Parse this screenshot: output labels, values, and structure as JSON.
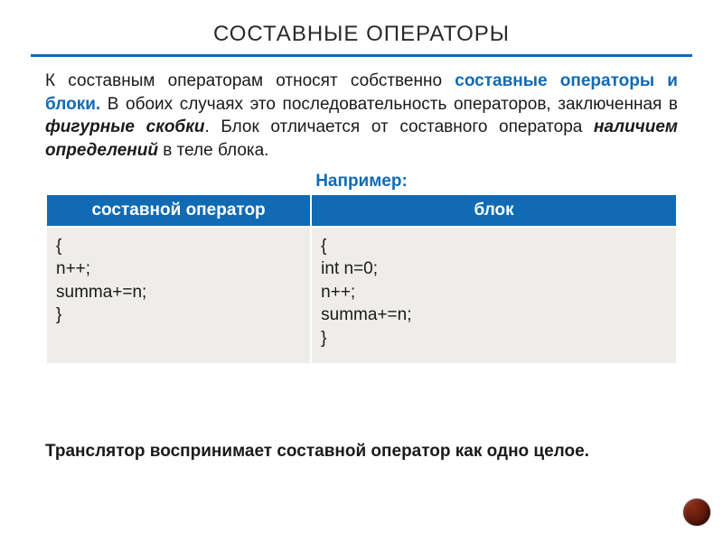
{
  "title": "СОСТАВНЫЕ ОПЕРАТОРЫ",
  "para": {
    "t1": "К составным операторам относят собственно ",
    "hl": "составные операторы и блоки.",
    "t2": " В обоих случаях это последовательность операторов, заключенная в ",
    "it1": "фигурные скобки",
    "t3": ". Блок отличается от составного оператора ",
    "bi1": "наличием определений",
    "t4": " в теле блока."
  },
  "example_label": "Например:",
  "table": {
    "headers": [
      "составной оператор",
      "блок"
    ],
    "col1": [
      "{",
      "n++;",
      "summa+=n;",
      "}"
    ],
    "col2": [
      "{",
      "int n=0;",
      "n++;",
      "summa+=n;",
      "}"
    ]
  },
  "bottom": "Транслятор воспринимает составной оператор как одно целое.",
  "colors": {
    "accent": "#106ab4",
    "cell_bg": "#efedea",
    "text": "#1a1a1a",
    "dot": "#5c180a"
  }
}
